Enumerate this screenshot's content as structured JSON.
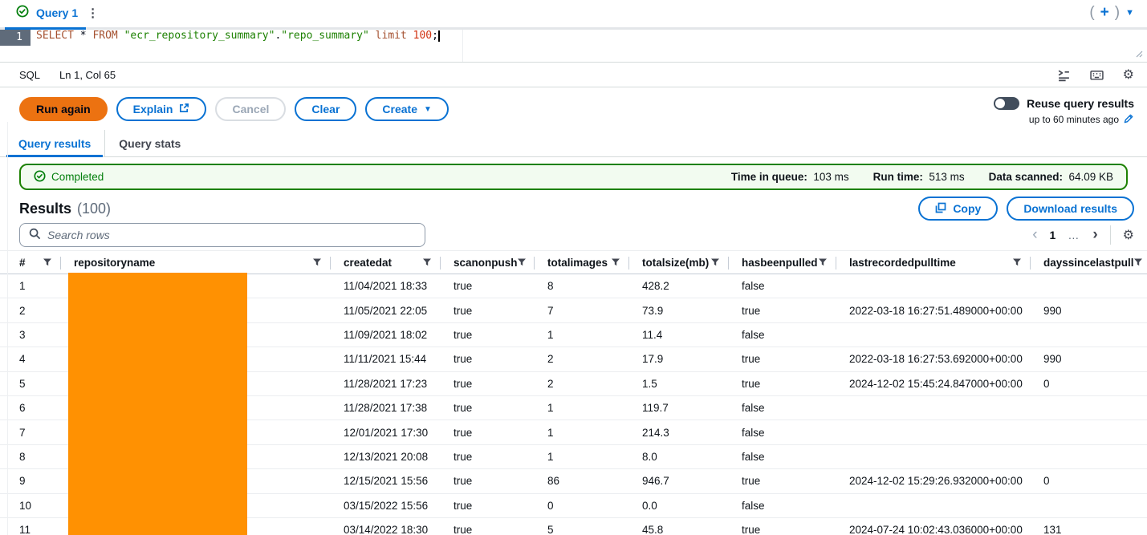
{
  "query_tab": {
    "label": "Query 1"
  },
  "editor": {
    "line_number": "1",
    "code_tokens": [
      {
        "t": "SELECT",
        "c": "kw"
      },
      {
        "t": " ",
        "c": "p"
      },
      {
        "t": "*",
        "c": "p"
      },
      {
        "t": " ",
        "c": "p"
      },
      {
        "t": "FROM",
        "c": "kw"
      },
      {
        "t": " ",
        "c": "p"
      },
      {
        "t": "\"ecr_repository_summary\"",
        "c": "str"
      },
      {
        "t": ".",
        "c": "p"
      },
      {
        "t": "\"repo_summary\"",
        "c": "str"
      },
      {
        "t": " ",
        "c": "p"
      },
      {
        "t": "limit",
        "c": "kw"
      },
      {
        "t": " ",
        "c": "p"
      },
      {
        "t": "100",
        "c": "num"
      },
      {
        "t": ";",
        "c": "p"
      }
    ],
    "status": {
      "language": "SQL",
      "position": "Ln 1, Col 65"
    }
  },
  "actions": {
    "run": "Run again",
    "explain": "Explain",
    "cancel": "Cancel",
    "clear": "Clear",
    "create": "Create",
    "reuse_label": "Reuse query results",
    "reuse_sub": "up to 60 minutes ago"
  },
  "result_tabs": [
    {
      "label": "Query results",
      "active": true
    },
    {
      "label": "Query stats",
      "active": false
    }
  ],
  "status_banner": {
    "state": "Completed",
    "metrics": [
      {
        "label": "Time in queue:",
        "value": "103 ms"
      },
      {
        "label": "Run time:",
        "value": "513 ms"
      },
      {
        "label": "Data scanned:",
        "value": "64.09 KB"
      }
    ]
  },
  "results": {
    "title": "Results",
    "count": "(100)",
    "copy": "Copy",
    "download": "Download results",
    "search_placeholder": "Search rows",
    "pagination": {
      "prev": "‹",
      "current": "1",
      "ellipsis": "…",
      "next": "›"
    }
  },
  "table": {
    "columns": [
      "#",
      "repositoryname",
      "createdat",
      "scanonpush",
      "totalimages",
      "totalsize(mb)",
      "hasbeenpulled",
      "lastrecordedpulltime",
      "dayssincelastpull"
    ],
    "rows": [
      [
        "1",
        "",
        "11/04/2021 18:33",
        "true",
        "8",
        "428.2",
        "false",
        "",
        ""
      ],
      [
        "2",
        "",
        "11/05/2021 22:05",
        "true",
        "7",
        "73.9",
        "true",
        "2022-03-18 16:27:51.489000+00:00",
        "990"
      ],
      [
        "3",
        "",
        "11/09/2021 18:02",
        "true",
        "1",
        "11.4",
        "false",
        "",
        ""
      ],
      [
        "4",
        "",
        "11/11/2021 15:44",
        "true",
        "2",
        "17.9",
        "true",
        "2022-03-18 16:27:53.692000+00:00",
        "990"
      ],
      [
        "5",
        "",
        "11/28/2021 17:23",
        "true",
        "2",
        "1.5",
        "true",
        "2024-12-02 15:45:24.847000+00:00",
        "0"
      ],
      [
        "6",
        "",
        "11/28/2021 17:38",
        "true",
        "1",
        "119.7",
        "false",
        "",
        ""
      ],
      [
        "7",
        "",
        "12/01/2021 17:30",
        "true",
        "1",
        "214.3",
        "false",
        "",
        ""
      ],
      [
        "8",
        "",
        "12/13/2021 20:08",
        "true",
        "1",
        "8.0",
        "false",
        "",
        ""
      ],
      [
        "9",
        "",
        "12/15/2021 15:56",
        "true",
        "86",
        "946.7",
        "true",
        "2024-12-02 15:29:26.932000+00:00",
        "0"
      ],
      [
        "10",
        "",
        "03/15/2022 15:56",
        "true",
        "0",
        "0.0",
        "false",
        "",
        ""
      ],
      [
        "11",
        "",
        "03/14/2022 18:30",
        "true",
        "5",
        "45.8",
        "true",
        "2024-07-24 10:02:43.036000+00:00",
        "131"
      ]
    ]
  },
  "icons": {
    "vertical_ellipsis": "⋮",
    "paren_open": "(",
    "paren_close": ")",
    "caret_down": "▼",
    "gear": "⚙"
  }
}
